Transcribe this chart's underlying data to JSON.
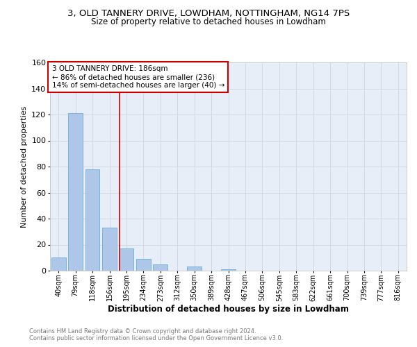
{
  "title_line1": "3, OLD TANNERY DRIVE, LOWDHAM, NOTTINGHAM, NG14 7PS",
  "title_line2": "Size of property relative to detached houses in Lowdham",
  "xlabel": "Distribution of detached houses by size in Lowdham",
  "ylabel": "Number of detached properties",
  "bar_labels": [
    "40sqm",
    "79sqm",
    "118sqm",
    "156sqm",
    "195sqm",
    "234sqm",
    "273sqm",
    "312sqm",
    "350sqm",
    "389sqm",
    "428sqm",
    "467sqm",
    "506sqm",
    "545sqm",
    "583sqm",
    "622sqm",
    "661sqm",
    "700sqm",
    "739sqm",
    "777sqm",
    "816sqm"
  ],
  "bar_values": [
    10,
    121,
    78,
    33,
    17,
    9,
    5,
    0,
    3,
    0,
    1,
    0,
    0,
    0,
    0,
    0,
    0,
    0,
    0,
    0,
    0
  ],
  "bar_color": "#aec6e8",
  "bar_edge_color": "#6aaed6",
  "property_line_index": 4,
  "annotation_title": "3 OLD TANNERY DRIVE: 186sqm",
  "annotation_line1": "← 86% of detached houses are smaller (236)",
  "annotation_line2": "14% of semi-detached houses are larger (40) →",
  "annotation_box_color": "#ffffff",
  "annotation_box_edge": "#cc0000",
  "vertical_line_color": "#cc0000",
  "ylim": [
    0,
    160
  ],
  "yticks": [
    0,
    20,
    40,
    60,
    80,
    100,
    120,
    140,
    160
  ],
  "grid_color": "#d0d8e8",
  "bg_color": "#e8eef8",
  "footer_line1": "Contains HM Land Registry data © Crown copyright and database right 2024.",
  "footer_line2": "Contains public sector information licensed under the Open Government Licence v3.0.",
  "footer_color": "#777777",
  "title_fontsize": 9.5,
  "subtitle_fontsize": 8.5,
  "xlabel_fontsize": 8.5,
  "ylabel_fontsize": 8,
  "tick_fontsize": 7,
  "annot_fontsize": 7.5
}
